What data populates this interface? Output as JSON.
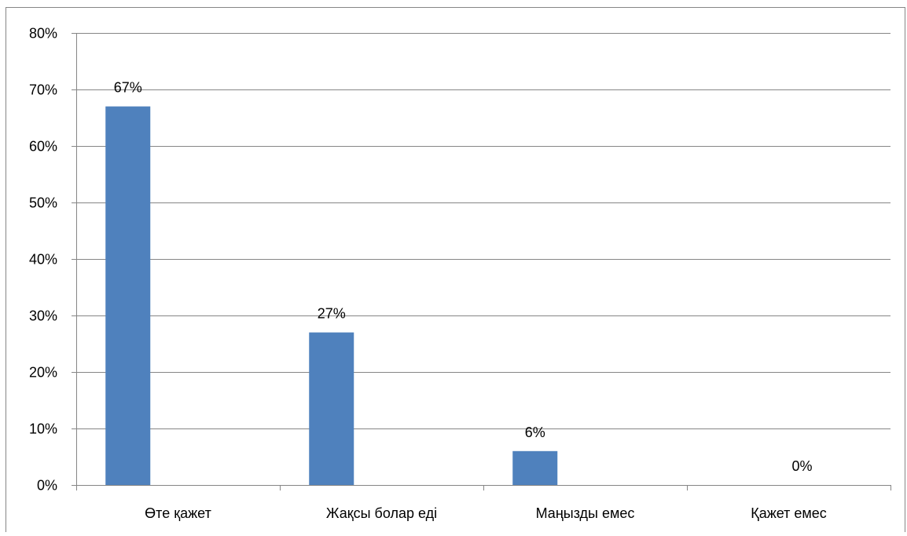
{
  "chart_data": {
    "type": "bar",
    "categories": [
      "Өте қажет",
      "Жақсы болар еді",
      "Маңызды емес",
      "Қажет емес"
    ],
    "values": [
      67,
      27,
      6,
      0
    ],
    "data_labels": [
      "67%",
      "27%",
      "6%",
      "0%"
    ],
    "ylim": [
      0,
      80
    ],
    "ytick_step": 10,
    "ytick_labels": [
      "0%",
      "10%",
      "20%",
      "30%",
      "40%",
      "50%",
      "60%",
      "70%",
      "80%"
    ],
    "title": "",
    "xlabel": "",
    "ylabel": "",
    "grid": true,
    "legend": false,
    "colors": {
      "bar": "#4f81bd",
      "grid": "#868686",
      "axis": "#868686",
      "border": "#868686",
      "text": "#000000"
    }
  }
}
